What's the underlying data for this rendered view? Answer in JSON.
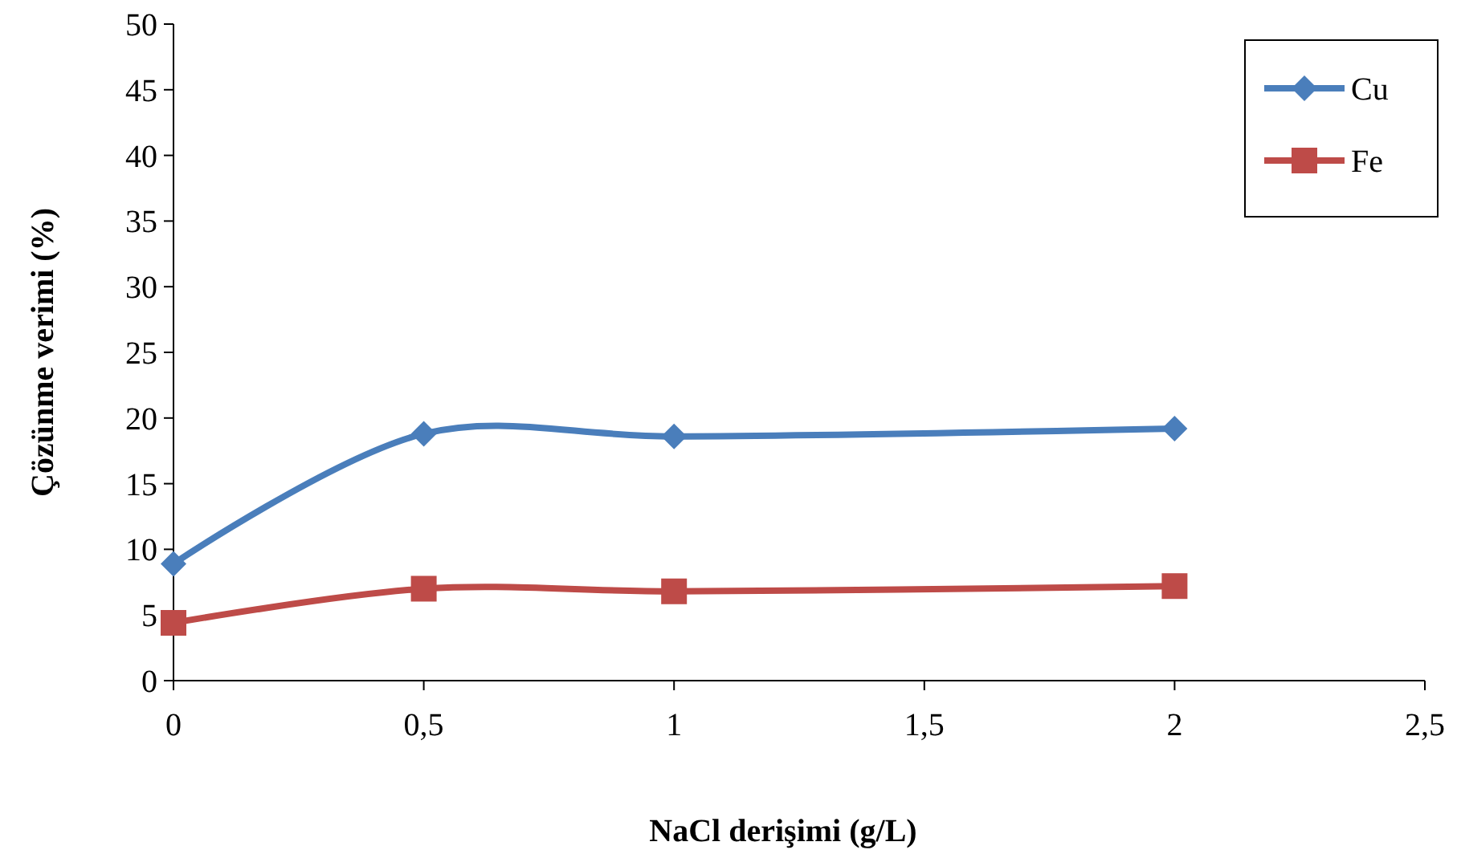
{
  "chart_data": {
    "type": "line",
    "xlabel": "NaCl derişimi (g/L)",
    "ylabel": "Çözünme verimi (%)",
    "x": [
      0,
      0.5,
      1,
      2
    ],
    "series": [
      {
        "name": "Cu",
        "color": "#4a7ebb",
        "values": [
          8.9,
          18.8,
          18.6,
          19.2
        ],
        "marker": "diamond"
      },
      {
        "name": "Fe",
        "color": "#be4b48",
        "values": [
          4.4,
          7.0,
          6.8,
          7.2
        ],
        "marker": "square"
      }
    ],
    "xlim": [
      0,
      2.5
    ],
    "xticks": [
      0,
      {
        "value": 0.5,
        "label": "0,5"
      },
      1,
      {
        "value": 1.5,
        "label": "1,5"
      },
      2,
      {
        "value": 2.5,
        "label": "2,5"
      }
    ],
    "ylim": [
      0,
      50
    ],
    "yticks": [
      0,
      5,
      10,
      15,
      20,
      25,
      30,
      35,
      40,
      45,
      50
    ],
    "grid": false,
    "legend": "top right",
    "line_style": "solid"
  }
}
